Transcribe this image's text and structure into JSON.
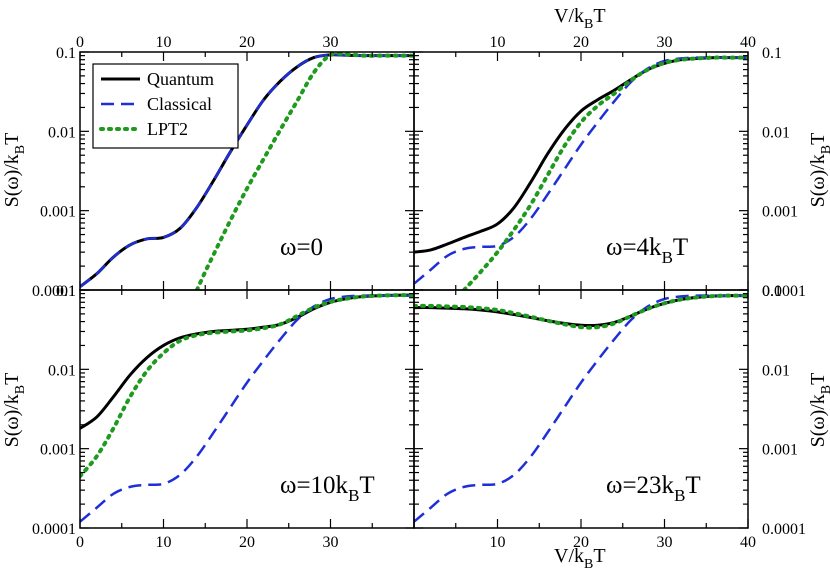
{
  "chart_data": {
    "type": "line",
    "figure": {
      "top_xlabel": "V/k_BT",
      "bottom_xlabel": "V/k_BT",
      "left_ylabel": "S(ω)/k_BT",
      "right_ylabel": "S(ω)/k_BT",
      "xlim": [
        0,
        40
      ],
      "ylim": [
        0.0001,
        0.1
      ],
      "yscale": "log",
      "x_ticks": [
        0,
        10,
        20,
        30,
        40
      ],
      "y_ticks": [
        0.0001,
        0.001,
        0.01,
        0.1
      ],
      "y_tick_labels": [
        "0.0001",
        "0.001",
        "0.01",
        "0.1"
      ],
      "legend": {
        "placement": "top-left of first panel",
        "entries": [
          {
            "name": "Quantum",
            "style": "solid",
            "color": "#000000"
          },
          {
            "name": "Classical",
            "style": "dashed",
            "color": "#1f2fd8"
          },
          {
            "name": "LPT2",
            "style": "dotted",
            "color": "#1e9a1e"
          }
        ]
      }
    },
    "panels": [
      {
        "label_main": "ω=0",
        "label_sub": "",
        "label_tail": "",
        "series": [
          {
            "name": "Quantum",
            "x": [
              0,
              2,
              4,
              6,
              8,
              10,
              12,
              14,
              16,
              18,
              20,
              22,
              24,
              26,
              28,
              30,
              32,
              34,
              36,
              38,
              40
            ],
            "y": [
              0.00011,
              0.00016,
              0.00026,
              0.00037,
              0.00044,
              0.00046,
              0.0006,
              0.0011,
              0.0024,
              0.0055,
              0.012,
              0.025,
              0.043,
              0.065,
              0.085,
              0.092,
              0.091,
              0.09,
              0.09,
              0.09,
              0.09
            ]
          },
          {
            "name": "Classical",
            "x": [
              0,
              2,
              4,
              6,
              8,
              10,
              12,
              14,
              16,
              18,
              20,
              22,
              24,
              26,
              28,
              30,
              32,
              34,
              36,
              38,
              40
            ],
            "y": [
              0.00011,
              0.00016,
              0.00026,
              0.00037,
              0.00044,
              0.00046,
              0.0006,
              0.0011,
              0.0024,
              0.0055,
              0.012,
              0.025,
              0.043,
              0.065,
              0.085,
              0.092,
              0.091,
              0.09,
              0.09,
              0.09,
              0.09
            ]
          },
          {
            "name": "LPT2",
            "x": [
              14,
              15,
              16,
              18,
              20,
              22,
              24,
              26,
              28,
              30,
              32,
              34,
              36,
              38,
              40
            ],
            "y": [
              0.0001,
              0.00017,
              0.00028,
              0.00075,
              0.0019,
              0.0045,
              0.0105,
              0.024,
              0.055,
              0.092,
              0.093,
              0.09,
              0.09,
              0.09,
              0.09
            ]
          }
        ]
      },
      {
        "label_main": "ω=4k",
        "label_sub": "B",
        "label_tail": "T",
        "series": [
          {
            "name": "Quantum",
            "x": [
              0,
              2,
              4,
              6,
              8,
              10,
              12,
              14,
              16,
              18,
              20,
              22,
              24,
              26,
              28,
              30,
              32,
              34,
              36,
              38,
              40
            ],
            "y": [
              0.0003,
              0.00032,
              0.00038,
              0.00046,
              0.00055,
              0.00068,
              0.0011,
              0.0023,
              0.0052,
              0.0105,
              0.018,
              0.025,
              0.033,
              0.045,
              0.06,
              0.072,
              0.08,
              0.083,
              0.085,
              0.085,
              0.085
            ]
          },
          {
            "name": "Classical",
            "x": [
              0,
              2,
              4,
              6,
              8,
              10,
              12,
              14,
              16,
              18,
              20,
              22,
              24,
              26,
              28,
              30,
              32,
              34,
              36,
              38,
              40
            ],
            "y": [
              0.00012,
              0.00018,
              0.00027,
              0.00033,
              0.00035,
              0.00036,
              0.00047,
              0.0008,
              0.0016,
              0.0033,
              0.0068,
              0.013,
              0.024,
              0.042,
              0.062,
              0.077,
              0.083,
              0.085,
              0.085,
              0.085,
              0.085
            ]
          },
          {
            "name": "LPT2",
            "x": [
              6,
              8,
              10,
              12,
              14,
              16,
              18,
              20,
              22,
              24,
              26,
              28,
              30,
              32,
              34,
              36,
              38,
              40
            ],
            "y": [
              0.0001,
              0.00017,
              0.0003,
              0.00058,
              0.0012,
              0.0028,
              0.0065,
              0.013,
              0.021,
              0.03,
              0.044,
              0.06,
              0.073,
              0.08,
              0.083,
              0.085,
              0.085,
              0.085
            ]
          }
        ]
      },
      {
        "label_main": "ω=10k",
        "label_sub": "B",
        "label_tail": "T",
        "series": [
          {
            "name": "Quantum",
            "x": [
              0,
              2,
              4,
              6,
              8,
              10,
              12,
              14,
              16,
              18,
              20,
              22,
              24,
              26,
              28,
              30,
              32,
              34,
              36,
              38,
              40
            ],
            "y": [
              0.0018,
              0.0025,
              0.0045,
              0.0085,
              0.014,
              0.02,
              0.025,
              0.028,
              0.03,
              0.031,
              0.032,
              0.034,
              0.037,
              0.045,
              0.058,
              0.07,
              0.078,
              0.083,
              0.085,
              0.086,
              0.086
            ]
          },
          {
            "name": "Classical",
            "x": [
              0,
              2,
              4,
              6,
              8,
              10,
              12,
              14,
              16,
              18,
              20,
              22,
              24,
              26,
              28,
              30,
              32,
              34,
              36,
              38,
              40
            ],
            "y": [
              0.00012,
              0.00018,
              0.00027,
              0.00033,
              0.00035,
              0.00036,
              0.00047,
              0.0008,
              0.0016,
              0.0033,
              0.0068,
              0.013,
              0.024,
              0.042,
              0.062,
              0.077,
              0.083,
              0.085,
              0.085,
              0.085,
              0.085
            ]
          },
          {
            "name": "LPT2",
            "x": [
              0,
              2,
              4,
              6,
              8,
              10,
              12,
              14,
              16,
              18,
              20,
              22,
              24,
              26,
              28,
              30,
              32,
              34,
              36,
              38,
              40
            ],
            "y": [
              0.00045,
              0.0008,
              0.0018,
              0.0045,
              0.0095,
              0.016,
              0.023,
              0.027,
              0.029,
              0.03,
              0.031,
              0.033,
              0.037,
              0.047,
              0.06,
              0.071,
              0.078,
              0.083,
              0.085,
              0.086,
              0.086
            ]
          }
        ]
      },
      {
        "label_main": "ω=23k",
        "label_sub": "B",
        "label_tail": "T",
        "series": [
          {
            "name": "Quantum",
            "x": [
              0,
              2,
              4,
              6,
              8,
              10,
              12,
              14,
              16,
              18,
              20,
              22,
              24,
              26,
              28,
              30,
              32,
              34,
              36,
              38,
              40
            ],
            "y": [
              0.06,
              0.06,
              0.059,
              0.058,
              0.056,
              0.053,
              0.049,
              0.045,
              0.041,
              0.038,
              0.036,
              0.036,
              0.039,
              0.047,
              0.058,
              0.068,
              0.076,
              0.081,
              0.084,
              0.085,
              0.085
            ]
          },
          {
            "name": "Classical",
            "x": [
              0,
              2,
              4,
              6,
              8,
              10,
              12,
              14,
              16,
              18,
              20,
              22,
              24,
              26,
              28,
              30,
              32,
              34,
              36,
              38,
              40
            ],
            "y": [
              0.00012,
              0.00018,
              0.00027,
              0.00033,
              0.00035,
              0.00036,
              0.00047,
              0.0008,
              0.0016,
              0.0033,
              0.0068,
              0.013,
              0.024,
              0.042,
              0.062,
              0.077,
              0.083,
              0.085,
              0.085,
              0.085,
              0.085
            ]
          },
          {
            "name": "LPT2",
            "x": [
              0,
              2,
              4,
              6,
              8,
              10,
              12,
              14,
              16,
              18,
              20,
              22,
              24,
              26,
              28,
              30,
              32,
              34,
              36,
              38,
              40
            ],
            "y": [
              0.063,
              0.063,
              0.062,
              0.061,
              0.059,
              0.056,
              0.051,
              0.046,
              0.041,
              0.037,
              0.034,
              0.034,
              0.038,
              0.047,
              0.058,
              0.068,
              0.076,
              0.081,
              0.084,
              0.085,
              0.085
            ]
          }
        ]
      }
    ]
  }
}
